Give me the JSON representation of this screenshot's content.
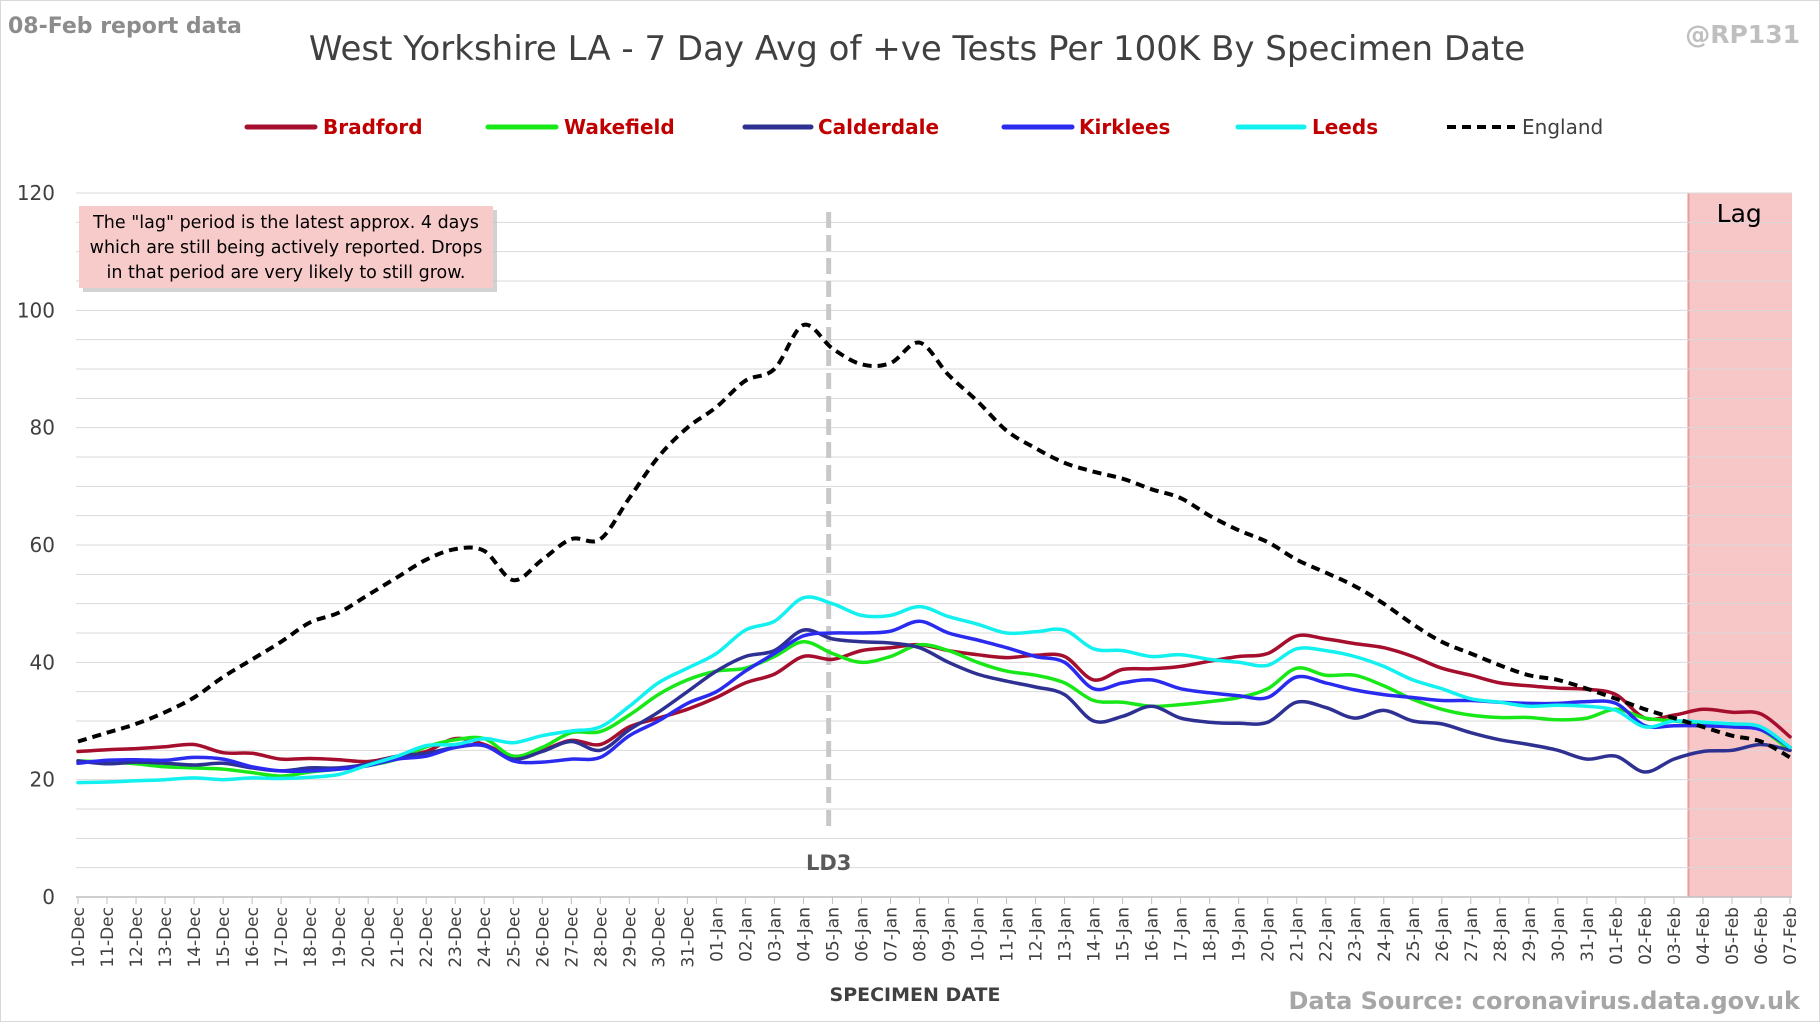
{
  "report_label": "08-Feb report data",
  "handle": "@RP131",
  "source": "Data Source: coronavirus.data.gov.uk",
  "note": {
    "lines": [
      "The \"lag\" period is the latest approx. 4 days",
      "which are still being actively reported.  Drops",
      "in that period are very likely to still grow."
    ]
  },
  "colors": {
    "Bradford": "#a50e2d",
    "Wakefield": "#18e818",
    "Calderdale": "#2e3192",
    "Kirklees": "#2b2bf0",
    "Leeds": "#12f0f0",
    "England": "#000000",
    "legend_red_text": "#c00000",
    "lag_fill": "#f7c6c6",
    "lag_edge": "#e89c9c",
    "note_fill": "#f8cbcb",
    "ld_line": "#c8c8c8",
    "grid": "#d9d9d9"
  },
  "chart_data": {
    "type": "line",
    "title": "West Yorkshire LA - 7 Day Avg of +ve Tests Per 100K By Specimen Date",
    "xlabel": "SPECIMEN DATE",
    "ylabel": "",
    "ylim": [
      0,
      120
    ],
    "yticks": [
      0,
      20,
      40,
      60,
      80,
      100,
      120
    ],
    "grid": true,
    "legend_position": "top",
    "x": [
      "10-Dec",
      "11-Dec",
      "12-Dec",
      "13-Dec",
      "14-Dec",
      "15-Dec",
      "16-Dec",
      "17-Dec",
      "18-Dec",
      "19-Dec",
      "20-Dec",
      "21-Dec",
      "22-Dec",
      "23-Dec",
      "24-Dec",
      "25-Dec",
      "26-Dec",
      "27-Dec",
      "28-Dec",
      "29-Dec",
      "30-Dec",
      "31-Dec",
      "01-Jan",
      "02-Jan",
      "03-Jan",
      "04-Jan",
      "05-Jan",
      "06-Jan",
      "07-Jan",
      "08-Jan",
      "09-Jan",
      "10-Jan",
      "11-Jan",
      "12-Jan",
      "13-Jan",
      "14-Jan",
      "15-Jan",
      "16-Jan",
      "17-Jan",
      "18-Jan",
      "19-Jan",
      "20-Jan",
      "21-Jan",
      "22-Jan",
      "23-Jan",
      "24-Jan",
      "25-Jan",
      "26-Jan",
      "27-Jan",
      "28-Jan",
      "29-Jan",
      "30-Jan",
      "31-Jan",
      "01-Feb",
      "02-Feb",
      "03-Feb",
      "04-Feb",
      "05-Feb",
      "06-Feb",
      "07-Feb"
    ],
    "series": [
      {
        "name": "Bradford",
        "style": "solid",
        "values": [
          24.8,
          25.1,
          25.3,
          25.6,
          26.0,
          24.6,
          24.5,
          23.5,
          23.6,
          23.4,
          23.1,
          24.0,
          24.8,
          27.0,
          26.0,
          24.0,
          25.0,
          26.7,
          26.0,
          29.0,
          30.5,
          32.0,
          34.0,
          36.5,
          38.0,
          41.0,
          40.5,
          42.0,
          42.5,
          43.0,
          42.0,
          41.3,
          40.8,
          41.2,
          41.0,
          37.0,
          38.8,
          38.9,
          39.3,
          40.2,
          41.0,
          41.5,
          44.5,
          44.0,
          43.2,
          42.5,
          41.0,
          39.0,
          37.8,
          36.5,
          36.0,
          35.6,
          35.4,
          34.5,
          30.5,
          31.0,
          32.0,
          31.5,
          31.2,
          27.3
        ]
      },
      {
        "name": "Wakefield",
        "style": "solid",
        "values": [
          23.2,
          23.0,
          22.7,
          22.2,
          22.0,
          21.8,
          21.2,
          20.6,
          21.3,
          21.8,
          22.4,
          23.5,
          25.6,
          26.8,
          27.0,
          24.0,
          25.5,
          28.0,
          28.2,
          31.0,
          34.5,
          37.0,
          38.5,
          39.0,
          41.0,
          43.5,
          41.5,
          40.0,
          41.0,
          43.0,
          42.0,
          40.0,
          38.5,
          37.8,
          36.5,
          33.5,
          33.2,
          32.5,
          32.8,
          33.3,
          34.0,
          35.5,
          39.0,
          37.8,
          37.8,
          36.0,
          33.7,
          32.0,
          31.0,
          30.6,
          30.6,
          30.2,
          30.5,
          32.0,
          30.5,
          30.0,
          29.5,
          29.5,
          28.5,
          25.0
        ]
      },
      {
        "name": "Calderdale",
        "style": "solid",
        "values": [
          23.2,
          22.7,
          23.0,
          22.8,
          22.5,
          22.8,
          22.0,
          21.5,
          22.0,
          22.0,
          22.7,
          24.0,
          24.5,
          25.5,
          25.8,
          23.5,
          24.8,
          26.5,
          25.0,
          28.5,
          31.5,
          35.0,
          38.5,
          41.0,
          42.0,
          45.5,
          44.0,
          43.5,
          43.3,
          42.5,
          40.0,
          38.0,
          36.8,
          35.8,
          34.5,
          30.0,
          30.8,
          32.5,
          30.5,
          29.8,
          29.6,
          29.8,
          33.2,
          32.3,
          30.5,
          31.8,
          30.0,
          29.5,
          28.0,
          26.8,
          26.0,
          25.0,
          23.5,
          24.0,
          21.3,
          23.5,
          24.8,
          25.0,
          26.0,
          25.0
        ]
      },
      {
        "name": "Kirklees",
        "style": "solid",
        "values": [
          22.8,
          23.3,
          23.4,
          23.3,
          23.8,
          23.5,
          22.2,
          21.5,
          21.5,
          21.8,
          22.4,
          23.5,
          24.0,
          25.5,
          25.8,
          23.2,
          23.0,
          23.5,
          23.8,
          27.5,
          30.0,
          33.0,
          35.0,
          38.5,
          41.5,
          44.5,
          45.0,
          45.0,
          45.3,
          47.0,
          45.0,
          43.8,
          42.5,
          41.0,
          40.0,
          35.5,
          36.5,
          37.0,
          35.5,
          34.8,
          34.3,
          34.0,
          37.5,
          36.5,
          35.3,
          34.5,
          34.0,
          33.5,
          33.5,
          33.2,
          33.0,
          33.0,
          33.3,
          33.0,
          29.2,
          29.2,
          29.2,
          29.0,
          28.5,
          25.5
        ]
      },
      {
        "name": "Leeds",
        "style": "solid",
        "values": [
          19.5,
          19.6,
          19.8,
          20.0,
          20.3,
          20.0,
          20.3,
          20.2,
          20.4,
          20.9,
          22.5,
          24.0,
          25.8,
          26.0,
          27.0,
          26.3,
          27.5,
          28.3,
          29.0,
          32.5,
          36.5,
          39.0,
          41.5,
          45.5,
          47.0,
          51.0,
          50.0,
          48.0,
          48.0,
          49.5,
          47.8,
          46.5,
          45.0,
          45.2,
          45.5,
          42.3,
          42.0,
          41.0,
          41.3,
          40.5,
          40.0,
          39.5,
          42.3,
          42.0,
          41.0,
          39.3,
          37.0,
          35.5,
          33.8,
          33.2,
          32.5,
          32.7,
          32.5,
          31.8,
          29.0,
          30.0,
          29.8,
          29.5,
          29.0,
          25.5
        ]
      },
      {
        "name": "England",
        "style": "dashed",
        "values": [
          26.5,
          28.0,
          29.5,
          31.5,
          34.0,
          37.5,
          40.5,
          43.5,
          46.8,
          48.5,
          51.5,
          54.5,
          57.5,
          59.3,
          59.0,
          54.0,
          57.5,
          61.0,
          61.0,
          68.0,
          75.0,
          80.0,
          83.5,
          88.0,
          90.0,
          97.5,
          93.5,
          90.8,
          91.0,
          94.5,
          89.0,
          84.5,
          79.5,
          76.5,
          74.0,
          72.5,
          71.3,
          69.5,
          68.0,
          65.0,
          62.5,
          60.5,
          57.5,
          55.3,
          53.0,
          50.0,
          46.5,
          43.5,
          41.5,
          39.5,
          37.8,
          37.0,
          35.5,
          33.8,
          32.0,
          30.5,
          29.0,
          27.5,
          26.5,
          23.8
        ]
      }
    ],
    "annotations": [
      {
        "label": "LD3",
        "x": "05-Jan"
      },
      {
        "label": "Lag",
        "from": "04-Feb",
        "to": "07-Feb"
      }
    ]
  }
}
